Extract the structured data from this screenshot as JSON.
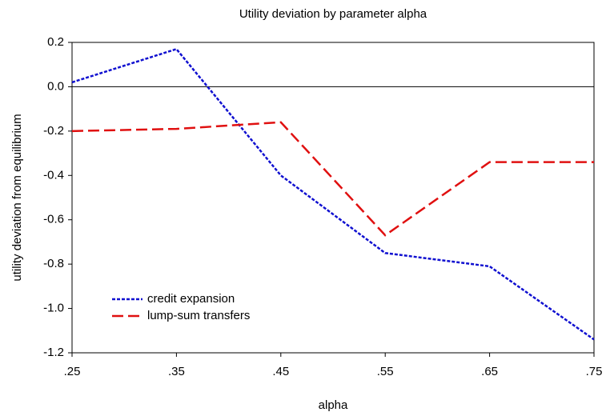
{
  "chart_data": {
    "type": "line",
    "title": "Utility deviation by parameter alpha",
    "x_label": "alpha",
    "y_label": "utility deviation from equilibrium",
    "x": [
      0.25,
      0.35,
      0.45,
      0.55,
      0.65,
      0.75
    ],
    "xlim": [
      0.25,
      0.75
    ],
    "xticks": [
      {
        "value": 0.25,
        "label": ".25"
      },
      {
        "value": 0.35,
        "label": ".35"
      },
      {
        "value": 0.45,
        "label": ".45"
      },
      {
        "value": 0.55,
        "label": ".55"
      },
      {
        "value": 0.65,
        "label": ".65"
      },
      {
        "value": 0.75,
        "label": ".75"
      }
    ],
    "ylim": [
      -1.2,
      0.2
    ],
    "yticks": [
      0.2,
      {
        "value": 0,
        "label": "0.0"
      },
      -0.2,
      -0.4,
      -0.6,
      -0.8,
      {
        "value": -1,
        "label": "-1.0"
      },
      -1.2
    ],
    "zero_line": true,
    "legend_position": "lower left",
    "series": [
      {
        "name": "credit expansion",
        "color": "#1010d0",
        "dash": "dotted",
        "values": [
          0.02,
          0.17,
          -0.4,
          -0.75,
          -0.81,
          -1.14
        ]
      },
      {
        "name": "lump-sum transfers",
        "color": "#e01010",
        "dash": "dashed",
        "values": [
          -0.2,
          -0.19,
          -0.16,
          -0.67,
          -0.34,
          -0.34
        ]
      }
    ]
  }
}
